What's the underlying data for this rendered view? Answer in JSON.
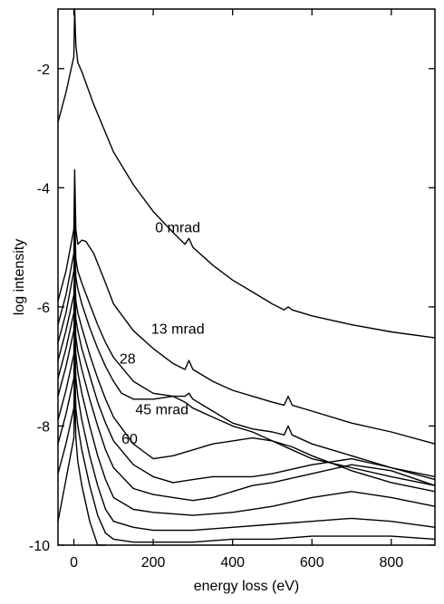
{
  "chart_data": {
    "type": "line",
    "title": "",
    "xlabel": "energy loss (eV)",
    "ylabel": "log intensity",
    "xlim": [
      -40,
      910
    ],
    "ylim": [
      -10,
      -1.0
    ],
    "x_ticks": [
      0,
      200,
      400,
      600,
      800
    ],
    "y_ticks": [
      -10,
      -8,
      -6,
      -4,
      -2
    ],
    "grid": false,
    "legend": "none",
    "line_color": "#000000",
    "annotations": [
      {
        "text": "0 mrad",
        "x": 205,
        "y": -4.75
      },
      {
        "text": "13 mrad",
        "x": 195,
        "y": -6.45
      },
      {
        "text": "28",
        "x": 115,
        "y": -6.95
      },
      {
        "text": "45 mrad",
        "x": 155,
        "y": -7.8
      },
      {
        "text": "60",
        "x": 120,
        "y": -8.3
      }
    ],
    "series": [
      {
        "label_ref": "0 mrad",
        "x": [
          -40,
          -20,
          0,
          2,
          5,
          10,
          20,
          50,
          100,
          150,
          200,
          250,
          280,
          290,
          300,
          350,
          400,
          450,
          500,
          530,
          540,
          550,
          600,
          700,
          800,
          910
        ],
        "y": [
          -2.9,
          -2.4,
          -1.8,
          -1.0,
          -1.6,
          -1.9,
          -2.05,
          -2.6,
          -3.4,
          -3.95,
          -4.4,
          -4.75,
          -4.95,
          -4.85,
          -5.0,
          -5.3,
          -5.55,
          -5.75,
          -5.95,
          -6.05,
          -6.0,
          -6.05,
          -6.15,
          -6.3,
          -6.42,
          -6.52
        ]
      },
      {
        "label_ref": "13 mrad",
        "x": [
          -40,
          -20,
          0,
          2,
          5,
          10,
          20,
          30,
          50,
          80,
          100,
          150,
          200,
          250,
          280,
          290,
          300,
          350,
          400,
          450,
          500,
          530,
          540,
          550,
          600,
          700,
          800,
          910
        ],
        "y": [
          -5.9,
          -5.4,
          -4.7,
          -3.7,
          -4.7,
          -4.95,
          -4.88,
          -4.9,
          -5.1,
          -5.6,
          -5.95,
          -6.4,
          -6.7,
          -6.95,
          -7.05,
          -6.9,
          -7.05,
          -7.25,
          -7.4,
          -7.5,
          -7.6,
          -7.65,
          -7.5,
          -7.65,
          -7.75,
          -7.95,
          -8.1,
          -8.3
        ]
      },
      {
        "label_ref": "28",
        "x": [
          -40,
          -20,
          0,
          2,
          5,
          10,
          20,
          40,
          60,
          80,
          100,
          150,
          200,
          250,
          280,
          290,
          300,
          350,
          400,
          450,
          500,
          530,
          540,
          550,
          600,
          700,
          800,
          910
        ],
        "y": [
          -6.3,
          -5.8,
          -5.1,
          -4.4,
          -5.2,
          -5.4,
          -5.6,
          -5.95,
          -6.3,
          -6.6,
          -6.85,
          -7.25,
          -7.45,
          -7.5,
          -7.5,
          -7.45,
          -7.55,
          -7.75,
          -7.95,
          -8.05,
          -8.1,
          -8.15,
          -8.0,
          -8.15,
          -8.3,
          -8.5,
          -8.7,
          -8.85
        ]
      },
      {
        "label_ref": "45 mrad",
        "x": [
          -40,
          -20,
          0,
          2,
          5,
          10,
          20,
          40,
          60,
          80,
          100,
          120,
          150,
          200,
          250,
          280,
          300,
          350,
          400,
          450,
          500,
          550,
          600,
          700,
          800,
          910
        ],
        "y": [
          -6.6,
          -6.1,
          -5.4,
          -4.9,
          -5.5,
          -5.7,
          -5.95,
          -6.35,
          -6.7,
          -7.0,
          -7.25,
          -7.45,
          -7.55,
          -7.55,
          -7.5,
          -7.6,
          -7.7,
          -7.85,
          -8.0,
          -8.1,
          -8.25,
          -8.4,
          -8.55,
          -8.7,
          -8.85,
          -9.0
        ]
      },
      {
        "label_ref": "60",
        "x": [
          -40,
          -20,
          0,
          2,
          5,
          10,
          20,
          40,
          60,
          80,
          100,
          150,
          180,
          200,
          250,
          300,
          350,
          400,
          450,
          500,
          550,
          600,
          700,
          800,
          910
        ],
        "y": [
          -6.9,
          -6.4,
          -5.8,
          -5.3,
          -5.9,
          -6.1,
          -6.35,
          -6.8,
          -7.2,
          -7.55,
          -7.85,
          -8.3,
          -8.45,
          -8.55,
          -8.5,
          -8.4,
          -8.3,
          -8.25,
          -8.2,
          -8.25,
          -8.35,
          -8.5,
          -8.75,
          -8.95,
          -9.1
        ]
      },
      {
        "x": [
          -40,
          -20,
          0,
          2,
          5,
          10,
          20,
          40,
          60,
          80,
          100,
          150,
          200,
          250,
          300,
          350,
          400,
          450,
          500,
          600,
          700,
          800,
          910
        ],
        "y": [
          -7.2,
          -6.7,
          -6.1,
          -5.6,
          -6.2,
          -6.4,
          -6.7,
          -7.15,
          -7.6,
          -7.95,
          -8.25,
          -8.65,
          -8.85,
          -8.95,
          -8.9,
          -8.85,
          -8.85,
          -8.85,
          -8.8,
          -8.65,
          -8.55,
          -8.7,
          -8.9
        ]
      },
      {
        "x": [
          -40,
          -20,
          0,
          2,
          5,
          10,
          20,
          40,
          60,
          80,
          100,
          150,
          200,
          250,
          300,
          350,
          400,
          450,
          500,
          600,
          700,
          800,
          910
        ],
        "y": [
          -7.5,
          -7.0,
          -6.4,
          -5.9,
          -6.5,
          -6.75,
          -7.05,
          -7.55,
          -8.0,
          -8.4,
          -8.7,
          -9.05,
          -9.15,
          -9.2,
          -9.25,
          -9.2,
          -9.1,
          -9.0,
          -8.95,
          -8.8,
          -8.65,
          -8.75,
          -9.0
        ]
      },
      {
        "x": [
          -40,
          -20,
          0,
          2,
          5,
          10,
          20,
          40,
          60,
          80,
          100,
          150,
          200,
          300,
          400,
          500,
          600,
          700,
          800,
          910
        ],
        "y": [
          -7.9,
          -7.4,
          -6.8,
          -6.2,
          -6.8,
          -7.1,
          -7.45,
          -8.0,
          -8.5,
          -8.9,
          -9.2,
          -9.4,
          -9.45,
          -9.5,
          -9.45,
          -9.35,
          -9.2,
          -9.1,
          -9.2,
          -9.35
        ]
      },
      {
        "x": [
          -40,
          -20,
          0,
          2,
          5,
          10,
          20,
          40,
          60,
          80,
          100,
          150,
          200,
          300,
          400,
          500,
          600,
          700,
          800,
          910
        ],
        "y": [
          -8.3,
          -7.8,
          -7.2,
          -6.5,
          -7.2,
          -7.5,
          -7.9,
          -8.5,
          -9.0,
          -9.4,
          -9.6,
          -9.7,
          -9.75,
          -9.75,
          -9.7,
          -9.65,
          -9.6,
          -9.55,
          -9.6,
          -9.7
        ]
      },
      {
        "x": [
          -40,
          -20,
          0,
          2,
          5,
          10,
          20,
          40,
          60,
          80,
          100,
          150,
          200,
          300,
          400,
          500,
          600,
          700,
          800,
          910
        ],
        "y": [
          -8.8,
          -8.3,
          -7.7,
          -6.9,
          -7.7,
          -8.0,
          -8.4,
          -9.0,
          -9.5,
          -9.8,
          -9.9,
          -9.95,
          -9.95,
          -9.95,
          -9.9,
          -9.9,
          -9.85,
          -9.85,
          -9.85,
          -9.9
        ]
      },
      {
        "x": [
          -40,
          -20,
          0,
          2,
          5,
          10,
          20,
          40,
          60,
          80
        ],
        "y": [
          -9.6,
          -8.9,
          -8.2,
          -7.3,
          -8.2,
          -8.6,
          -9.0,
          -9.6,
          -10.0,
          -10.0
        ]
      }
    ]
  }
}
